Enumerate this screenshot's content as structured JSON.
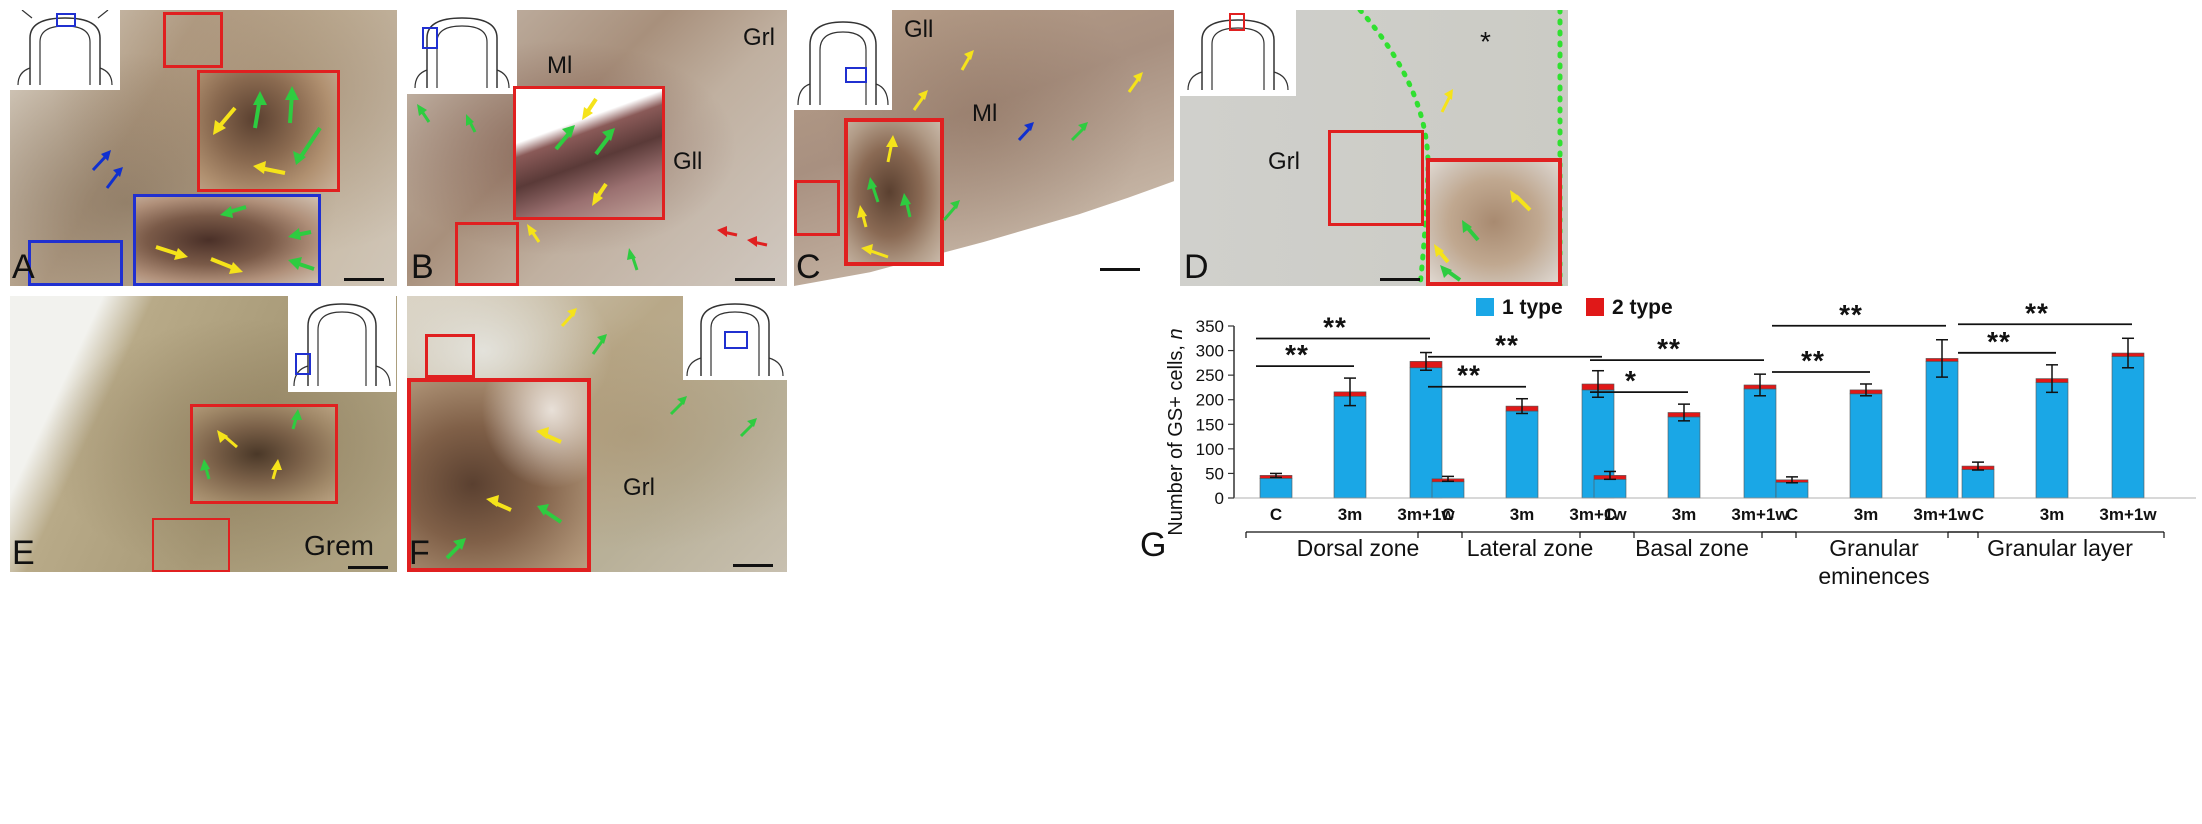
{
  "panels": [
    {
      "letter": "A"
    },
    {
      "letter": "B",
      "regions": [
        "Ml",
        "Grl",
        "Gll"
      ]
    },
    {
      "letter": "C",
      "regions": [
        "Gll",
        "Ml"
      ]
    },
    {
      "letter": "D",
      "regions": [
        "Grl",
        "*"
      ]
    },
    {
      "letter": "E",
      "regions": [
        "Grem"
      ]
    },
    {
      "letter": "F",
      "regions": [
        "Grl"
      ]
    }
  ],
  "chart_panel_letter": "G",
  "colors": {
    "type1": "#1aa7e6",
    "type2": "#e01818",
    "green_arrow": "#2ecc40",
    "yellow_arrow": "#f5e31a",
    "blue_arrow": "#1030d0",
    "red_box": "#e02020",
    "blue_box": "#2030d0"
  },
  "chart_data": {
    "type": "bar",
    "stacked": true,
    "ylabel": "Number of GS+  cells, n",
    "ylabel_italic_part": "n",
    "yticks": [
      0,
      50,
      100,
      150,
      200,
      250,
      300,
      350
    ],
    "ylim": [
      0,
      350
    ],
    "legend": {
      "position": "top",
      "entries": [
        "1 type",
        "2 type"
      ]
    },
    "group_labels": [
      "Dorsal zone",
      "Lateral zone",
      "Basal zone",
      "Granular\neminences",
      "Granular layer"
    ],
    "categories": [
      "C",
      "3m",
      "3m+1w"
    ],
    "series": [
      {
        "name": "1 type",
        "values": [
          [
            40,
            207,
            265
          ],
          [
            33,
            177,
            220
          ],
          [
            38,
            165,
            222
          ],
          [
            32,
            212,
            278
          ],
          [
            58,
            235,
            288
          ]
        ]
      },
      {
        "name": "2 type",
        "values": [
          [
            6,
            9,
            13
          ],
          [
            6,
            10,
            12
          ],
          [
            8,
            9,
            8
          ],
          [
            5,
            8,
            6
          ],
          [
            7,
            8,
            7
          ]
        ]
      }
    ],
    "error": [
      [
        4,
        28,
        18
      ],
      [
        5,
        15,
        27
      ],
      [
        8,
        17,
        22
      ],
      [
        6,
        12,
        38
      ],
      [
        8,
        28,
        30
      ]
    ],
    "significance": [
      [
        {
          "from": 0,
          "to": 1,
          "label": "**"
        },
        {
          "from": 0,
          "to": 2,
          "label": "**"
        }
      ],
      [
        {
          "from": 0,
          "to": 1,
          "label": "**"
        },
        {
          "from": 0,
          "to": 2,
          "label": "**"
        }
      ],
      [
        {
          "from": 0,
          "to": 1,
          "label": "*"
        },
        {
          "from": 0,
          "to": 2,
          "label": "**"
        }
      ],
      [
        {
          "from": 0,
          "to": 1,
          "label": "**"
        },
        {
          "from": 0,
          "to": 2,
          "label": "**"
        }
      ],
      [
        {
          "from": 0,
          "to": 1,
          "label": "**"
        },
        {
          "from": 0,
          "to": 2,
          "label": "**"
        }
      ]
    ]
  }
}
